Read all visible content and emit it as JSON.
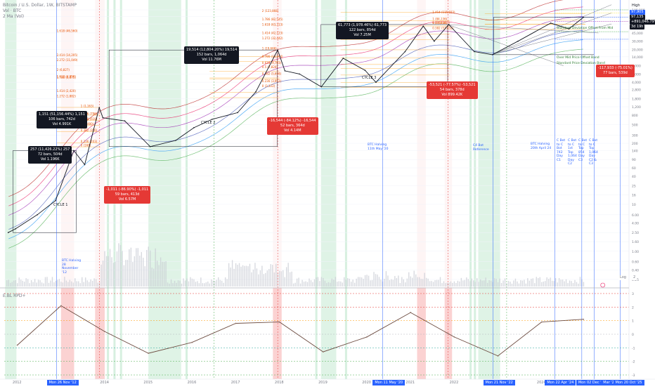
{
  "header": {
    "symbol_line": "Bitcoin / U.S. Dollar, 1W, BITSTAMP",
    "vol_line": "Vol · BTC",
    "indicator_line": "2 Ma (Vol)"
  },
  "right_axis": {
    "currency": "USD",
    "ticks": [
      "140,000",
      "100,000",
      "70,000",
      "45,000",
      "30,000",
      "20,000",
      "14,000",
      "9,000",
      "6,000",
      "4,000",
      "2,800",
      "1,800",
      "1,200",
      "800",
      "500",
      "300",
      "200",
      "140",
      "90",
      "60",
      "40",
      "25",
      "16",
      "10",
      "6.00",
      "4.00",
      "2.50",
      "1.60",
      "1.00",
      "0.60",
      "0.40",
      "0.25"
    ],
    "high_label": "High",
    "price_tag": "97,135",
    "price_tag_sub": "+891,046.79%",
    "price_tag_time": "3d 19h",
    "price_tag_aux": "97,905",
    "log_label": "Log",
    "log_value": "2"
  },
  "oscillator": {
    "label": "E.BL RPD+",
    "ticks": [
      "3",
      "2",
      "1",
      "0",
      "-1",
      "-2",
      "-3"
    ]
  },
  "x_axis": {
    "years": [
      "2012",
      "2013",
      "2014",
      "2015",
      "2016",
      "2017",
      "2018",
      "2019",
      "2020",
      "2021",
      "2022",
      "2023",
      "2024"
    ],
    "highlighted_dates": [
      "Mon 26 Nov '12",
      "Mon 11 May '20",
      "Mon 21 Nov '22",
      "Mon 22 Apr '24",
      "Mon 02 Dec '24",
      "Mar '25",
      "Mon 20 Oct '25"
    ]
  },
  "cycles": [
    "CYCLE 1",
    "CYCLE 2",
    "CYCLE 3"
  ],
  "callouts": [
    {
      "lines": [
        "257 (11,426.22%) 257",
        "72 bars, 504d",
        "Vol 1.196K"
      ],
      "style": "black"
    },
    {
      "lines": [
        "1,151 (51,156.44%) 1,151",
        "106 bars, 742d",
        "Vol 4.991K"
      ],
      "style": "black"
    },
    {
      "lines": [
        "19,514 (12,804.20%) 19,514",
        "152 bars, 1,064d",
        "Vol 11.76M"
      ],
      "style": "black"
    },
    {
      "lines": [
        "61,773 (1,978.46%) 61,773",
        "122 bars, 854d",
        "Vol 7.25M"
      ],
      "style": "black"
    },
    {
      "lines": [
        "-1,011 (-86.90%) -1,011",
        "59 bars, 413d",
        "Vol 6.57M"
      ],
      "style": "red"
    },
    {
      "lines": [
        "-16,544 (-84.12%) -16,544",
        "52 bars, 364d",
        "Vol 4.14M"
      ],
      "style": "red"
    },
    {
      "lines": [
        "-53,521 (-77.57%) -53,521",
        "54 bars, 378d",
        "Vol 899.42K"
      ],
      "style": "red"
    },
    {
      "lines": [
        "-117,933 (-75.01%)",
        "77 bars, 539d"
      ],
      "style": "red"
    }
  ],
  "fib_labels": {
    "cycle1": [
      "0.786 (796)",
      "0.618 (610)",
      "0.5 (480)",
      "0.382 (356)",
      "0.236 (203)",
      "0 (168)",
      "1 (1,163)"
    ],
    "cycle2": [
      "1.618 (4,950)",
      "1.414 (2,420)",
      "1.272 (1,882)",
      "1.786 (4,675)",
      "2 (6,827)",
      "2.272 (11,049)",
      "2.414 (14,205)",
      "1.618 (46,560)"
    ],
    "cycle3": [
      "1 (19,666)",
      "0.786 (13,264)",
      "0.618 (9,763)",
      "0.5 (7,824)",
      "0.382 (5,698)",
      "0.236 (3,952)",
      "0 (3,122)",
      "1.272 (32,442)",
      "1.414 (42,123)",
      "1.618 (63,313)",
      "1.786 (82,545)",
      "2 (123,868)"
    ],
    "cycle4": [
      "2 (272,071)",
      "1.786 (200,005)",
      "1.618 (157,467)",
      "1.414 (115,693)",
      "1 (69,044)",
      "1 (84,136)",
      "0.5 (68,817)",
      "0.382 (53,432)"
    ]
  },
  "guide_labels": [
    "Standard Deviation Offset From Mid",
    "Over Mid Price Offset Band",
    "Standard Price Deviation Band"
  ],
  "event_notes": [
    "BTC Halving 28 November '12",
    "BTC Halving 11th May '20",
    "C4 Bot Reference",
    "BTC Halving 20th April 24",
    "C Bot to C Bot 742 Day C1",
    "C Bot to C 1st Top 1,064 Day C2",
    "C Bot to C Top 854 Day C3",
    "C Bot to C Top 1,064 Day C2 & C3"
  ],
  "chart_data": [
    {
      "type": "line",
      "title": "Bitcoin / U.S. Dollar, 1W, BITSTAMP",
      "y_scale": "log",
      "ylim": [
        0.25,
        150000
      ],
      "x": [
        "2011-10",
        "2011-12",
        "2012-06",
        "2012-11",
        "2013-04",
        "2013-07",
        "2013-11",
        "2013-12",
        "2014-06",
        "2015-01",
        "2015-08",
        "2016-01",
        "2016-06",
        "2017-01",
        "2017-06",
        "2017-12",
        "2018-02",
        "2018-06",
        "2018-12",
        "2019-06",
        "2019-12",
        "2020-03",
        "2020-11",
        "2021-04",
        "2021-07",
        "2021-11",
        "2022-06",
        "2022-11",
        "2023-06",
        "2024-03",
        "2024-08",
        "2024-12"
      ],
      "series": [
        {
          "values": [
            2.5,
            3,
            6,
            12,
            140,
            70,
            1151,
            700,
            600,
            170,
            230,
            430,
            650,
            900,
            2500,
            19500,
            7000,
            6000,
            3200,
            13000,
            7200,
            4000,
            18000,
            63000,
            30000,
            68000,
            18000,
            15500,
            30000,
            73000,
            55000,
            97135
          ]
        }
      ]
    },
    {
      "type": "line",
      "title": "E.BL RPD+",
      "ylim": [
        -3,
        3
      ],
      "x": [
        "2012",
        "2013",
        "2014",
        "2015",
        "2016",
        "2017",
        "2018",
        "2019",
        "2020",
        "2021",
        "2022",
        "2023",
        "2024",
        "2024-12"
      ],
      "series": [
        {
          "values": [
            -0.8,
            2.1,
            0.2,
            -1.4,
            -0.6,
            0.8,
            0.9,
            -1.3,
            -0.2,
            1.6,
            -0.2,
            -1.6,
            0.9,
            1.1
          ]
        }
      ]
    }
  ]
}
